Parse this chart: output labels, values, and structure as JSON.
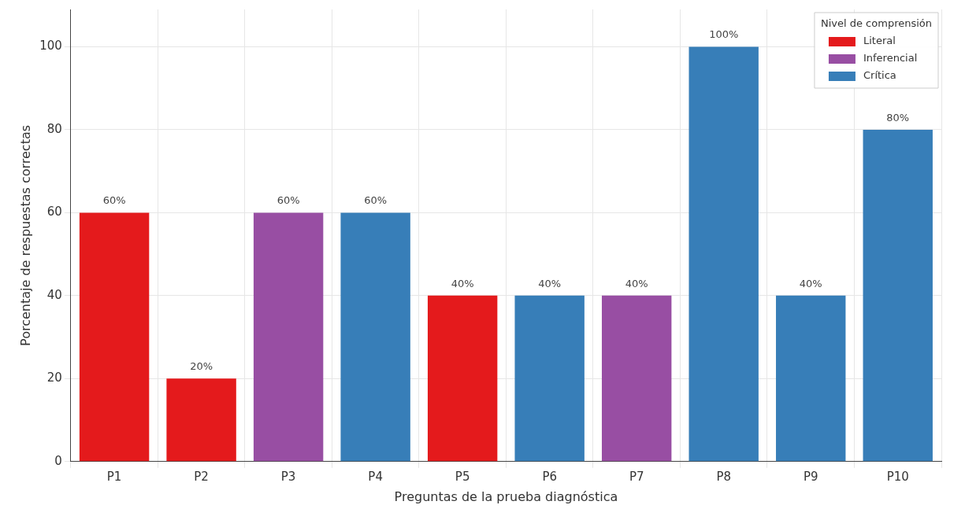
{
  "chart_data": {
    "type": "bar",
    "xlabel": "Preguntas de la prueba diagnóstica",
    "ylabel": "Porcentaje de respuestas correctas",
    "legend_title": "Nivel de comprensión",
    "categories": [
      "P1",
      "P2",
      "P3",
      "P4",
      "P5",
      "P6",
      "P7",
      "P8",
      "P9",
      "P10"
    ],
    "series": [
      {
        "name": "Literal",
        "color": "#e41a1c",
        "values": [
          60,
          20,
          null,
          null,
          40,
          null,
          null,
          null,
          null,
          null
        ],
        "value_labels": [
          "60%",
          "20%",
          null,
          null,
          "40%",
          null,
          null,
          null,
          null,
          null
        ]
      },
      {
        "name": "Inferencial",
        "color": "#984ea3",
        "values": [
          null,
          null,
          60,
          null,
          null,
          null,
          40,
          null,
          null,
          null
        ],
        "value_labels": [
          null,
          null,
          "60%",
          null,
          null,
          null,
          "40%",
          null,
          null,
          null
        ]
      },
      {
        "name": "Crítica",
        "color": "#377eb8",
        "values": [
          null,
          null,
          null,
          60,
          null,
          40,
          null,
          100,
          40,
          80
        ],
        "value_labels": [
          null,
          null,
          null,
          "60%",
          null,
          "40%",
          null,
          "100%",
          "40%",
          "80%"
        ]
      }
    ],
    "ylim": [
      0,
      109
    ],
    "yticks": [
      0,
      20,
      40,
      60,
      80,
      100
    ],
    "grid": true,
    "legend": "top right"
  }
}
